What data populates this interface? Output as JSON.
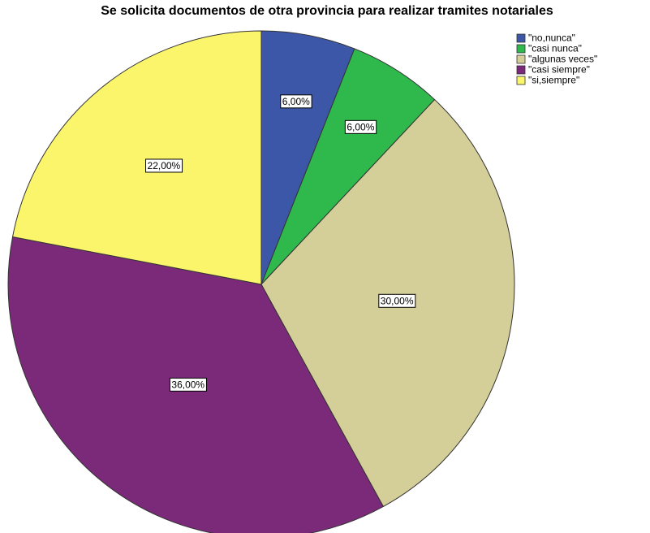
{
  "chart_data": {
    "type": "pie",
    "title": "Se solicita documentos de otra provincia para realizar tramites notariales",
    "categories": [
      "\"no,nunca\"",
      "\"casi nunca\"",
      "\"algunas veces\"",
      "\"casi siempre\"",
      "\"si,siempre\""
    ],
    "values": [
      6,
      6,
      30,
      36,
      22
    ],
    "value_labels": [
      "6,00%",
      "6,00%",
      "30,00%",
      "36,00%",
      "22,00%"
    ],
    "colors": [
      "#3d57a8",
      "#2fb84b",
      "#d4cf99",
      "#7b2979",
      "#fbf56b"
    ],
    "legend": "top-right"
  }
}
